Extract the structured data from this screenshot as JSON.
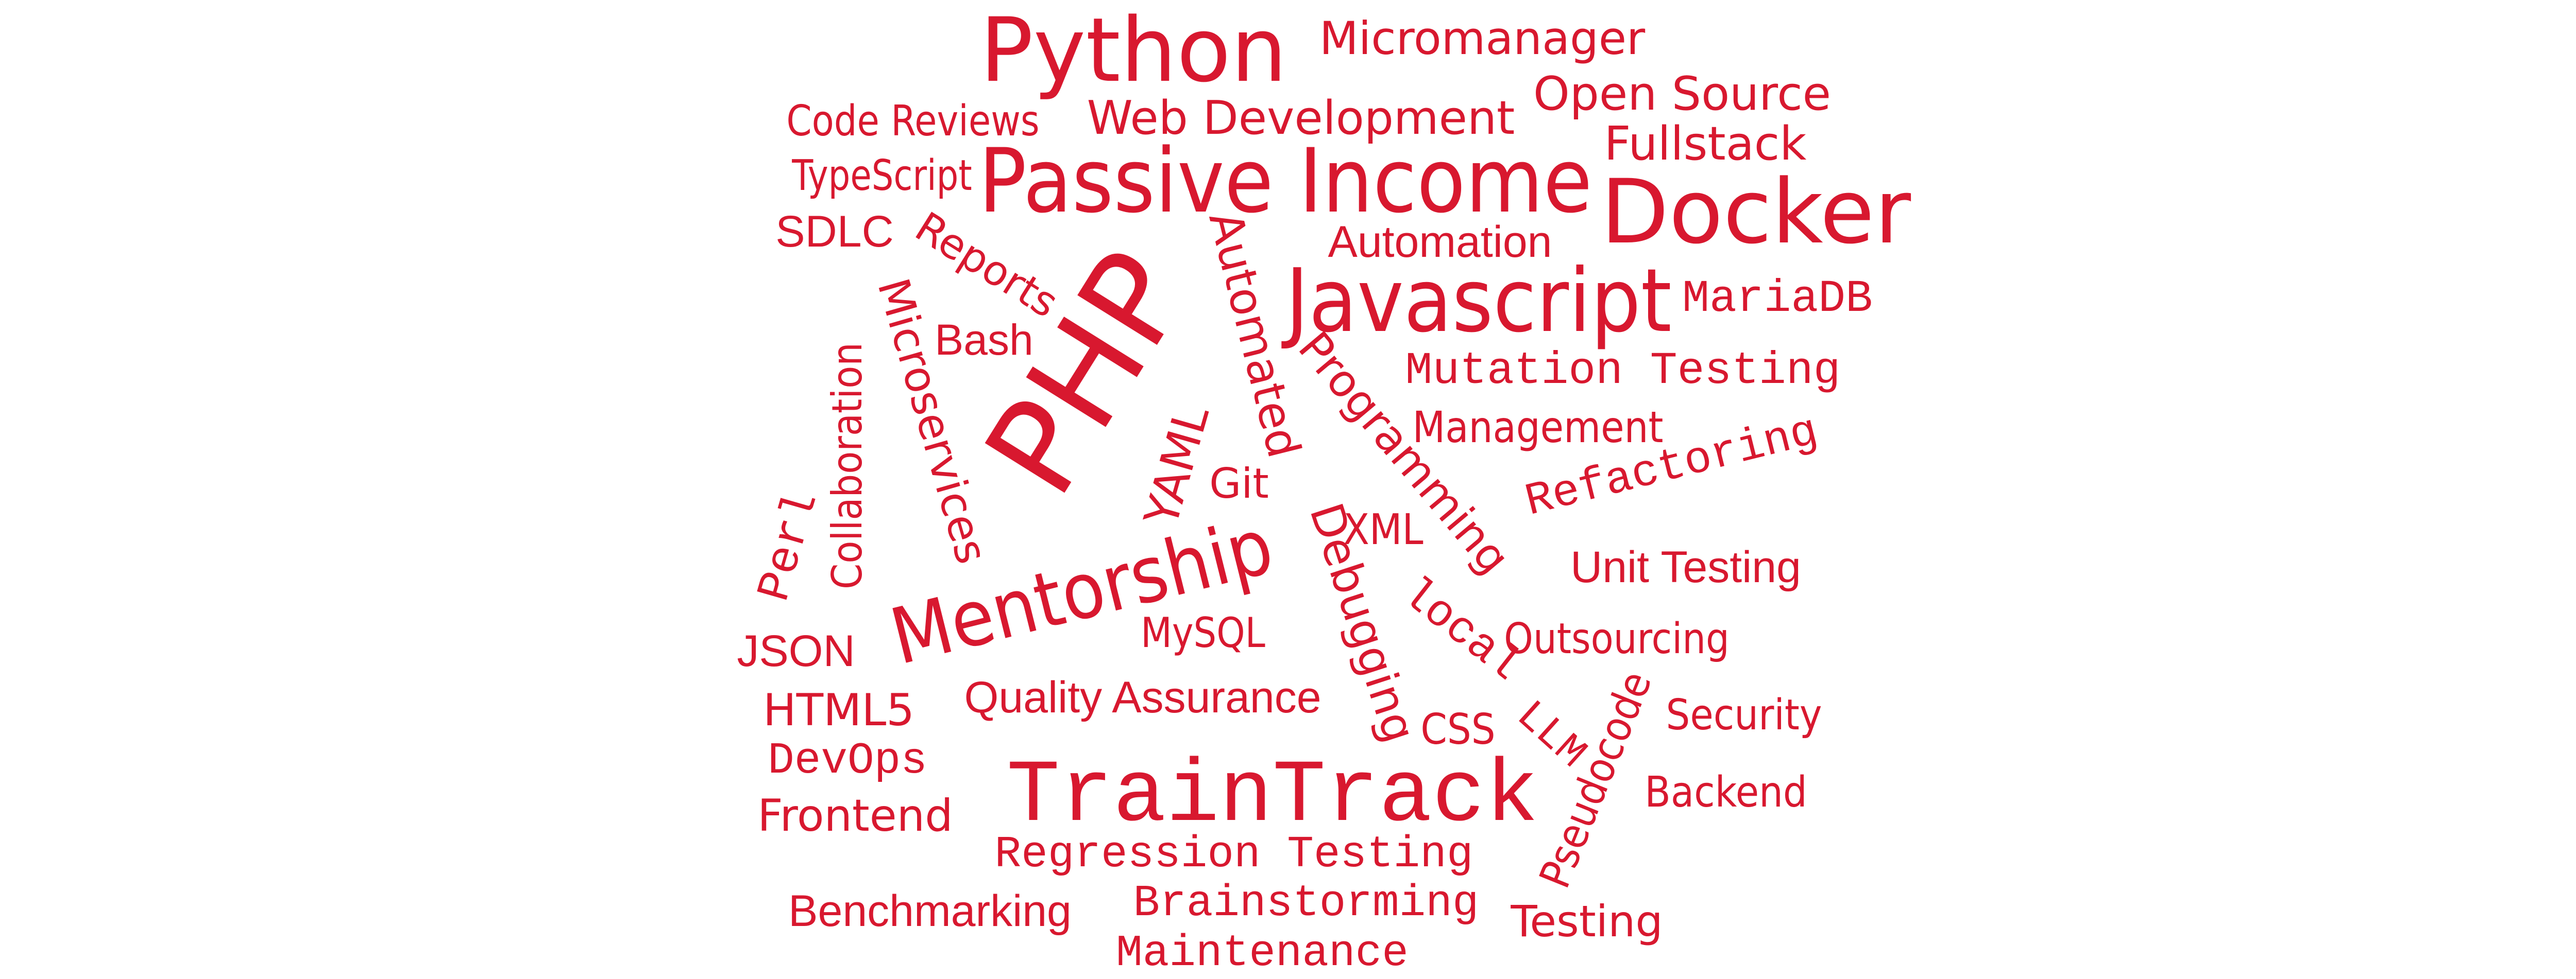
{
  "style": {
    "text_color": "#d8182f",
    "background": "#ffffff"
  },
  "words": [
    {
      "id": "python",
      "text": "Python"
    },
    {
      "id": "micromanager",
      "text": "Micromanager"
    },
    {
      "id": "open-source",
      "text": "Open Source"
    },
    {
      "id": "code-reviews",
      "text": "Code Reviews"
    },
    {
      "id": "web-development",
      "text": "Web Development"
    },
    {
      "id": "fullstack",
      "text": "Fullstack"
    },
    {
      "id": "typescript",
      "text": "TypeScript"
    },
    {
      "id": "passive-income",
      "text": "Passive Income"
    },
    {
      "id": "docker",
      "text": "Docker"
    },
    {
      "id": "sdlc",
      "text": "SDLC"
    },
    {
      "id": "reports",
      "text": "Reports"
    },
    {
      "id": "php",
      "text": "PHP"
    },
    {
      "id": "automated",
      "text": "Automated"
    },
    {
      "id": "automation",
      "text": "Automation"
    },
    {
      "id": "javascript",
      "text": "Javascript"
    },
    {
      "id": "mariadb",
      "text": "MariaDB"
    },
    {
      "id": "microservices",
      "text": "Microservices"
    },
    {
      "id": "bash",
      "text": "Bash"
    },
    {
      "id": "collaboration",
      "text": "Collaboration"
    },
    {
      "id": "programming",
      "text": "Programming"
    },
    {
      "id": "mutation-testing",
      "text": "Mutation Testing"
    },
    {
      "id": "management",
      "text": "Management"
    },
    {
      "id": "yaml",
      "text": "YAML"
    },
    {
      "id": "git",
      "text": "Git"
    },
    {
      "id": "refactoring",
      "text": "Refactoring"
    },
    {
      "id": "perl",
      "text": "Perl"
    },
    {
      "id": "xml",
      "text": "XML"
    },
    {
      "id": "debugging",
      "text": "Debugging"
    },
    {
      "id": "mentorship",
      "text": "Mentorship"
    },
    {
      "id": "unit-testing",
      "text": "Unit Testing"
    },
    {
      "id": "local",
      "text": "local"
    },
    {
      "id": "mysql",
      "text": "MySQL"
    },
    {
      "id": "outsourcing",
      "text": "Outsourcing"
    },
    {
      "id": "json",
      "text": "JSON"
    },
    {
      "id": "html5",
      "text": "HTML5"
    },
    {
      "id": "quality-assurance",
      "text": "Quality Assurance"
    },
    {
      "id": "pseudocode",
      "text": "Pseudocode"
    },
    {
      "id": "security",
      "text": "Security"
    },
    {
      "id": "css",
      "text": "CSS"
    },
    {
      "id": "llm",
      "text": "LLM"
    },
    {
      "id": "devops",
      "text": "DevOps"
    },
    {
      "id": "traintrack",
      "text": "TrainTrack"
    },
    {
      "id": "backend",
      "text": "Backend"
    },
    {
      "id": "frontend",
      "text": "Frontend"
    },
    {
      "id": "regression-testing",
      "text": "Regression Testing"
    },
    {
      "id": "benchmarking",
      "text": "Benchmarking"
    },
    {
      "id": "brainstorming",
      "text": "Brainstorming"
    },
    {
      "id": "testing",
      "text": "Testing"
    },
    {
      "id": "maintenance",
      "text": "Maintenance"
    }
  ]
}
